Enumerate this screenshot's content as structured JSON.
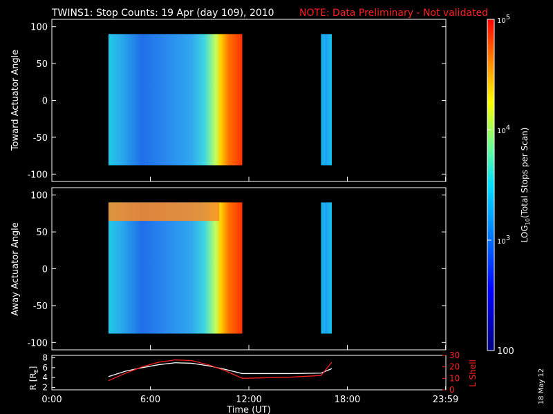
{
  "title": {
    "main": "TWINS1: Stop Counts: 19 Apr (day 109), 2010",
    "note": "NOTE: Data Preliminary - Not validated"
  },
  "date_stamp": "18 May 12",
  "colors": {
    "background": "#000000",
    "axis": "#ffffff",
    "note": "#ff2020",
    "r_line": "#ffffff",
    "l_line": "#ff2020"
  },
  "chart_data": [
    {
      "type": "heatmap",
      "ylabel": "Toward Actuator Angle",
      "ylim": [
        -110,
        110
      ],
      "yticks": [
        {
          "v": 100,
          "label": "100"
        },
        {
          "v": 50,
          "label": "50"
        },
        {
          "v": 0,
          "label": "0"
        },
        {
          "v": -50,
          "label": "-50"
        },
        {
          "v": -100,
          "label": "-100"
        }
      ],
      "angle_range": [
        -88,
        90
      ],
      "data_blocks": [
        {
          "t_start": 3.45,
          "t_end": 11.6,
          "description": "log counts ~2.8-3.2, rising to >4 after 10:00"
        },
        {
          "t_start": 16.4,
          "t_end": 17.05,
          "description": "log counts ~3.0"
        }
      ]
    },
    {
      "type": "heatmap",
      "ylabel": "Away Actuator Angle",
      "ylim": [
        -110,
        110
      ],
      "yticks": [
        {
          "v": 100,
          "label": "100"
        },
        {
          "v": 50,
          "label": "50"
        },
        {
          "v": 0,
          "label": "0"
        },
        {
          "v": -50,
          "label": "-50"
        },
        {
          "v": -100,
          "label": "-100"
        }
      ],
      "angle_range": [
        -88,
        90
      ],
      "data_blocks": [
        {
          "t_start": 3.45,
          "t_end": 11.6,
          "description": "log counts ~2.8-3.2, band near 70-90 deg ~4"
        },
        {
          "t_start": 16.4,
          "t_end": 17.05,
          "description": "log counts ~3.0"
        }
      ]
    },
    {
      "type": "line",
      "ylabel_left": "R [R",
      "ylabel_left_sub": "E",
      "ylabel_left_end": "]",
      "ylabel_right": "L Shell",
      "ylim_left": [
        1.5,
        8.5
      ],
      "ylim_right": [
        0,
        30
      ],
      "yticks_left": [
        {
          "v": 2,
          "label": "2"
        },
        {
          "v": 4,
          "label": "4"
        },
        {
          "v": 6,
          "label": "6"
        },
        {
          "v": 8,
          "label": "8"
        }
      ],
      "yticks_right": [
        {
          "v": 0,
          "label": "0"
        },
        {
          "v": 10,
          "label": "10"
        },
        {
          "v": 20,
          "label": "20"
        },
        {
          "v": 30,
          "label": "30"
        }
      ],
      "series": [
        {
          "name": "R",
          "axis": "left",
          "x": [
            3.45,
            4.5,
            5.5,
            6.5,
            7.5,
            8.5,
            9.5,
            10.5,
            11.6,
            13,
            14.5,
            16.4,
            17.05
          ],
          "y": [
            4.2,
            5.3,
            6.0,
            6.6,
            7.0,
            6.9,
            6.4,
            5.7,
            4.8,
            4.8,
            4.8,
            4.9,
            5.8
          ]
        },
        {
          "name": "L Shell",
          "axis": "right",
          "x": [
            3.45,
            4.5,
            5.5,
            6.5,
            7.5,
            8.5,
            9.5,
            10.5,
            11.6,
            13,
            14.5,
            16.4,
            17.05
          ],
          "y": [
            8.0,
            14.5,
            20.0,
            24.0,
            26.0,
            25.5,
            22.0,
            17.0,
            10.0,
            10.5,
            11.0,
            12.5,
            24.0
          ]
        }
      ]
    }
  ],
  "time_axis": {
    "label": "Time (UT)",
    "range": [
      0,
      24
    ],
    "ticks": [
      {
        "v": 0,
        "label": "0:00"
      },
      {
        "v": 6,
        "label": "6:00"
      },
      {
        "v": 12,
        "label": "12:00"
      },
      {
        "v": 18,
        "label": "18:00"
      },
      {
        "v": 23.983,
        "label": "23:59"
      }
    ]
  },
  "colorbar": {
    "label_prefix": "LOG",
    "label_sub": "10",
    "label_suffix": "(Total Stops per Scan)",
    "scale_min": 100,
    "scale_max": 100000,
    "ticks": [
      {
        "log": 5,
        "label": "10",
        "sup": "5"
      },
      {
        "log": 4,
        "label": "10",
        "sup": "4"
      },
      {
        "log": 3,
        "label": "10",
        "sup": "3"
      },
      {
        "log": 2,
        "label": "100",
        "sup": ""
      }
    ]
  }
}
